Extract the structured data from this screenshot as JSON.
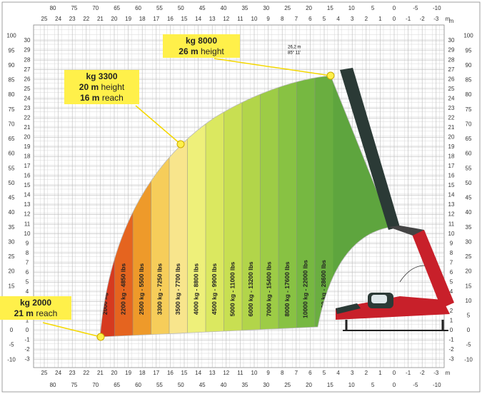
{
  "axes": {
    "unit": "m",
    "meters_h": [
      25,
      24,
      23,
      22,
      21,
      20,
      19,
      18,
      17,
      16,
      15,
      14,
      13,
      12,
      11,
      10,
      9,
      8,
      7,
      6,
      5,
      4,
      3,
      2,
      1,
      0,
      -1,
      -2,
      -3
    ],
    "feet_h": [
      80,
      75,
      70,
      65,
      60,
      55,
      50,
      45,
      40,
      35,
      30,
      25,
      20,
      15,
      10,
      5,
      0,
      -5,
      -10
    ],
    "meters_v": [
      30,
      29,
      28,
      27,
      26,
      25,
      24,
      23,
      22,
      21,
      20,
      19,
      18,
      17,
      16,
      15,
      14,
      13,
      12,
      11,
      10,
      9,
      8,
      7,
      6,
      5,
      4,
      3,
      2,
      1,
      0,
      -1,
      -2,
      -3
    ],
    "feet_v": [
      100,
      95,
      90,
      85,
      80,
      75,
      70,
      65,
      60,
      55,
      50,
      45,
      40,
      35,
      30,
      25,
      20,
      15,
      10,
      5,
      0,
      -5,
      -10
    ]
  },
  "callouts": [
    {
      "weight": "kg 8000",
      "lines": [
        {
          "value": "26 m",
          "label": "height"
        }
      ]
    },
    {
      "weight": "kg 3300",
      "lines": [
        {
          "value": "20 m",
          "label": "height"
        },
        {
          "value": "16 m",
          "label": "reach"
        }
      ]
    },
    {
      "weight": "kg 2000",
      "lines": [
        {
          "value": "21 m",
          "label": "reach"
        }
      ]
    }
  ],
  "zones": [
    "2000 kg - 4400 lbs",
    "2200 kg - 4850 lbs",
    "2500 kg - 5500 lbs",
    "3300 kg - 7250 lbs",
    "3500 kg - 7700 lbs",
    "4000 kg - 8800 lbs",
    "4500 kg - 9900 lbs",
    "5000 kg - 11000 lbs",
    "6000 kg - 13200 lbs",
    "7000 kg - 15400 lbs",
    "8000 kg - 17600 lbs",
    "10000 kg - 22000 lbs",
    "13000 kg - 28600 lbs"
  ],
  "boom_note": [
    "26,2 m",
    "85° 11'"
  ]
}
